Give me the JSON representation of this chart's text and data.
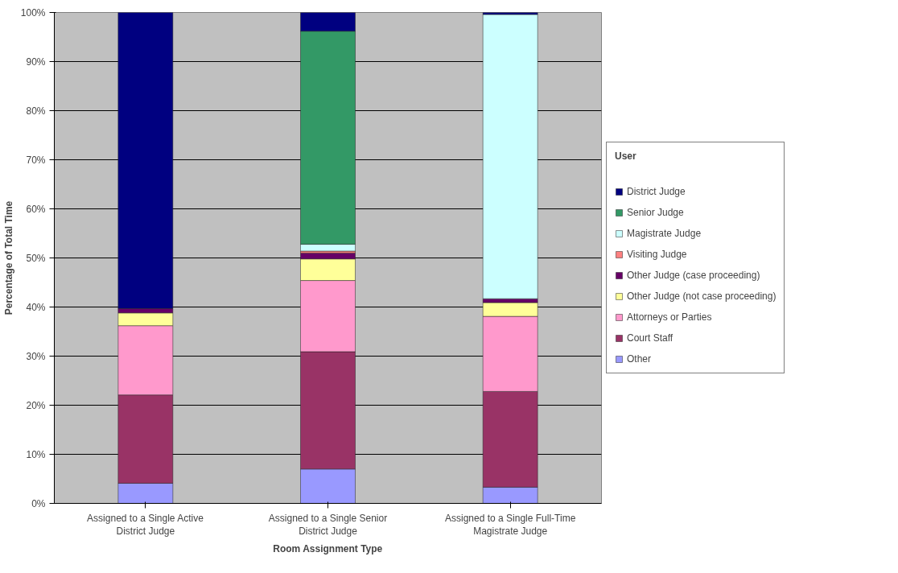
{
  "chart_data": {
    "type": "bar",
    "stacked": true,
    "xlabel": "Room Assignment Type",
    "ylabel": "Percentage of Total Time",
    "legend_title": "User",
    "legend": "right",
    "grid": "y",
    "categories": [
      "Assigned to a Single Active District Judge",
      "Assigned to a Single Senior District Judge",
      "Assigned to a Single Full-Time Magistrate Judge"
    ],
    "ylim": [
      0,
      100
    ],
    "yticks": [
      {
        "value": 0,
        "label": "0%"
      },
      {
        "value": 10,
        "label": "10%"
      },
      {
        "value": 20,
        "label": "20%"
      },
      {
        "value": 30,
        "label": "30%"
      },
      {
        "value": 40,
        "label": "40%"
      },
      {
        "value": 50,
        "label": "50%"
      },
      {
        "value": 60,
        "label": "60%"
      },
      {
        "value": 70,
        "label": "70%"
      },
      {
        "value": 80,
        "label": "80%"
      },
      {
        "value": 90,
        "label": "90%"
      },
      {
        "value": 100,
        "label": "100%"
      }
    ],
    "series": [
      {
        "name": "Other",
        "color": "#9999ff",
        "values": [
          4.1,
          7.0,
          3.3
        ]
      },
      {
        "name": "Court Staff",
        "color": "#993366",
        "values": [
          18.0,
          23.9,
          19.5
        ]
      },
      {
        "name": "Attorneys or Parties",
        "color": "#ff99cc",
        "values": [
          14.1,
          14.5,
          15.3
        ]
      },
      {
        "name": "Other Judge (not case proceeding)",
        "color": "#ffff99",
        "values": [
          2.6,
          4.4,
          2.8
        ]
      },
      {
        "name": "Other Judge (case proceeding)",
        "color": "#660066",
        "values": [
          0.9,
          1.2,
          0.8
        ]
      },
      {
        "name": "Visiting Judge",
        "color": "#ff8080",
        "values": [
          0,
          0.4,
          0
        ]
      },
      {
        "name": "Magistrate Judge",
        "color": "#ccffff",
        "values": [
          0,
          1.4,
          57.9
        ]
      },
      {
        "name": "Senior Judge",
        "color": "#339966",
        "values": [
          0,
          43.4,
          0
        ]
      },
      {
        "name": "District Judge",
        "color": "#000080",
        "values": [
          60.3,
          3.8,
          0.4
        ]
      }
    ]
  }
}
